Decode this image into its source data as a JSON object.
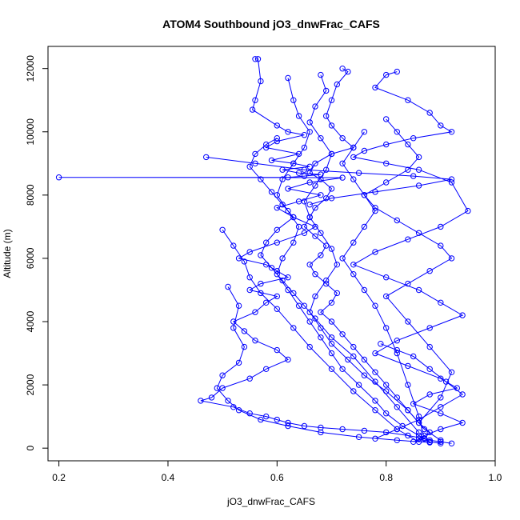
{
  "chart_data": {
    "type": "scatter",
    "title": "ATOM4 Southbound jO3_dnwFrac_CAFS",
    "xlabel": "jO3_dnwFrac_CAFS",
    "ylabel": "Altitude (m)",
    "xlim": [
      0.18,
      1.0
    ],
    "ylim": [
      -400,
      12700
    ],
    "xticks": [
      0.2,
      0.4,
      0.6,
      0.8,
      1.0
    ],
    "xtick_labels": [
      "0.2",
      "0.4",
      "0.6",
      "0.8",
      "1.0"
    ],
    "yticks": [
      0,
      2000,
      4000,
      6000,
      8000,
      10000,
      12000
    ],
    "ytick_labels": [
      "0",
      "2000",
      "4000",
      "6000",
      "8000",
      "10000",
      "12000"
    ],
    "grid": false,
    "legend": "none",
    "marker": "open-circle",
    "connect_points": true,
    "series_color": "#0000ff",
    "series": [
      {
        "x": [
          0.56,
          0.565,
          0.57,
          0.56,
          0.555,
          0.6,
          0.62,
          0.65,
          0.6,
          0.58,
          0.64,
          0.59,
          0.63,
          0.66,
          0.61,
          0.64,
          0.68,
          0.65,
          0.62,
          0.2,
          0.72,
          0.66,
          0.62,
          0.68,
          0.64,
          0.6,
          0.63,
          0.67,
          0.65,
          0.6,
          0.55,
          0.53,
          0.58,
          0.6,
          0.62,
          0.57,
          0.55,
          0.6,
          0.58,
          0.56,
          0.52,
          0.54,
          0.56,
          0.6,
          0.62,
          0.58,
          0.55,
          0.5,
          0.48,
          0.46,
          0.52,
          0.55,
          0.58,
          0.6,
          0.62,
          0.65,
          0.68,
          0.72,
          0.76,
          0.8,
          0.84,
          0.87,
          0.88,
          0.9,
          0.92
        ],
        "y": [
          12300,
          12300,
          11600,
          11000,
          10700,
          10200,
          10000,
          9900,
          9700,
          9500,
          9300,
          9100,
          9000,
          8900,
          8800,
          8700,
          8650,
          8600,
          8560,
          8560,
          8550,
          8400,
          8200,
          8000,
          7800,
          7600,
          7300,
          7000,
          6800,
          6500,
          6200,
          6000,
          5800,
          5600,
          5400,
          5200,
          5000,
          4800,
          4600,
          4300,
          4000,
          3700,
          3400,
          3100,
          2800,
          2500,
          2200,
          1900,
          1600,
          1500,
          1300,
          1100,
          1000,
          900,
          800,
          700,
          650,
          600,
          550,
          500,
          400,
          300,
          250,
          200,
          150
        ]
      },
      {
        "x": [
          0.72,
          0.73,
          0.71,
          0.7,
          0.69,
          0.7,
          0.72,
          0.74,
          0.7,
          0.67,
          0.66,
          0.68,
          0.7,
          0.69,
          0.67,
          0.66,
          0.65,
          0.67,
          0.69,
          0.68,
          0.66,
          0.67,
          0.69,
          0.71,
          0.7,
          0.68,
          0.7,
          0.72,
          0.74,
          0.76,
          0.78,
          0.8,
          0.82,
          0.84,
          0.86,
          0.88,
          0.87,
          0.85
        ],
        "y": [
          12000,
          11900,
          11500,
          11000,
          10500,
          10200,
          9800,
          9500,
          9300,
          9000,
          8700,
          8500,
          8200,
          7900,
          7600,
          7300,
          7000,
          6700,
          6400,
          6100,
          5800,
          5500,
          5200,
          4900,
          4600,
          4300,
          4000,
          3600,
          3200,
          2800,
          2400,
          2000,
          1600,
          1200,
          800,
          500,
          300,
          200
        ]
      },
      {
        "x": [
          0.82,
          0.8,
          0.78,
          0.84,
          0.88,
          0.9,
          0.92,
          0.85,
          0.8,
          0.76,
          0.74,
          0.8,
          0.86,
          0.92,
          0.95,
          0.9,
          0.84,
          0.78,
          0.74,
          0.8,
          0.86,
          0.9,
          0.94,
          0.88,
          0.82,
          0.78,
          0.84,
          0.9,
          0.93,
          0.88,
          0.85,
          0.9,
          0.94,
          0.9,
          0.87,
          0.86,
          0.88,
          0.9
        ],
        "y": [
          11900,
          11800,
          11400,
          11000,
          10600,
          10200,
          10000,
          9800,
          9600,
          9400,
          9200,
          9000,
          8800,
          8400,
          7500,
          7000,
          6600,
          6200,
          5800,
          5400,
          5000,
          4600,
          4200,
          3800,
          3400,
          3000,
          2600,
          2200,
          1900,
          1700,
          1400,
          1100,
          800,
          600,
          400,
          300,
          200,
          150
        ]
      },
      {
        "x": [
          0.62,
          0.63,
          0.64,
          0.66,
          0.65,
          0.63,
          0.61,
          0.6,
          0.62,
          0.64,
          0.63,
          0.61,
          0.6,
          0.62,
          0.64,
          0.66,
          0.68,
          0.7,
          0.72,
          0.75,
          0.78,
          0.8,
          0.83,
          0.86,
          0.88
        ],
        "y": [
          11700,
          11000,
          10500,
          10000,
          9500,
          9000,
          8500,
          8000,
          7500,
          7000,
          6500,
          6000,
          5500,
          5000,
          4500,
          4000,
          3500,
          3000,
          2500,
          2000,
          1500,
          1100,
          700,
          400,
          200
        ]
      },
      {
        "x": [
          0.68,
          0.69,
          0.67,
          0.66,
          0.68,
          0.7,
          0.69,
          0.67,
          0.65,
          0.66,
          0.68,
          0.7,
          0.71,
          0.69,
          0.67,
          0.66,
          0.68,
          0.7,
          0.73,
          0.76,
          0.8,
          0.84,
          0.87,
          0.9
        ],
        "y": [
          11800,
          11300,
          10800,
          10300,
          9800,
          9300,
          8800,
          8300,
          7800,
          7300,
          6800,
          6300,
          5800,
          5300,
          4800,
          4300,
          3800,
          3300,
          2800,
          2300,
          1800,
          1200,
          600,
          250
        ]
      },
      {
        "x": [
          0.6,
          0.58,
          0.56,
          0.55,
          0.57,
          0.59,
          0.61,
          0.63,
          0.6,
          0.58,
          0.57,
          0.59,
          0.61,
          0.63,
          0.65,
          0.67,
          0.7,
          0.74,
          0.78,
          0.82,
          0.86
        ],
        "y": [
          9800,
          9600,
          9300,
          8900,
          8500,
          8100,
          7700,
          7300,
          6900,
          6500,
          6100,
          5700,
          5300,
          4900,
          4500,
          4100,
          3500,
          2900,
          2100,
          1300,
          500
        ]
      },
      {
        "x": [
          0.8,
          0.82,
          0.84,
          0.86,
          0.84,
          0.8,
          0.76,
          0.78,
          0.82,
          0.86,
          0.9,
          0.92,
          0.88,
          0.84,
          0.8,
          0.84,
          0.88,
          0.92,
          0.9,
          0.86
        ],
        "y": [
          10400,
          10000,
          9600,
          9200,
          8800,
          8400,
          8000,
          7600,
          7200,
          6800,
          6400,
          6000,
          5600,
          5200,
          4800,
          4000,
          3200,
          2400,
          1600,
          800
        ]
      },
      {
        "x": [
          0.76,
          0.74,
          0.72,
          0.74,
          0.76,
          0.78,
          0.76,
          0.74,
          0.72,
          0.74,
          0.76,
          0.78,
          0.8,
          0.82,
          0.84,
          0.86,
          0.87
        ],
        "y": [
          10000,
          9500,
          9000,
          8500,
          8000,
          7500,
          7000,
          6500,
          6000,
          5500,
          5000,
          4500,
          3800,
          3000,
          2000,
          1000,
          300
        ]
      },
      {
        "x": [
          0.5,
          0.52,
          0.54,
          0.55,
          0.57,
          0.6,
          0.63,
          0.66,
          0.7,
          0.74,
          0.78,
          0.82,
          0.86
        ],
        "y": [
          6900,
          6400,
          5900,
          5400,
          4900,
          4400,
          3800,
          3200,
          2500,
          1800,
          1200,
          600,
          200
        ]
      },
      {
        "x": [
          0.47,
          0.56,
          0.65,
          0.75,
          0.85,
          0.92,
          0.86,
          0.78,
          0.7,
          0.66
        ],
        "y": [
          9200,
          9000,
          8800,
          8700,
          8600,
          8500,
          8300,
          8100,
          7900,
          7700
        ]
      },
      {
        "x": [
          0.51,
          0.53,
          0.52,
          0.54,
          0.53,
          0.5,
          0.49,
          0.51,
          0.53,
          0.57,
          0.62,
          0.68,
          0.75,
          0.82,
          0.88
        ],
        "y": [
          5100,
          4500,
          3800,
          3200,
          2700,
          2300,
          1900,
          1500,
          1200,
          900,
          700,
          500,
          350,
          250,
          180
        ]
      },
      {
        "x": [
          0.79,
          0.82,
          0.85,
          0.88,
          0.91,
          0.94,
          0.9,
          0.86,
          0.82,
          0.78
        ],
        "y": [
          3300,
          3100,
          2900,
          2500,
          2100,
          1700,
          1300,
          900,
          600,
          300
        ]
      }
    ]
  }
}
